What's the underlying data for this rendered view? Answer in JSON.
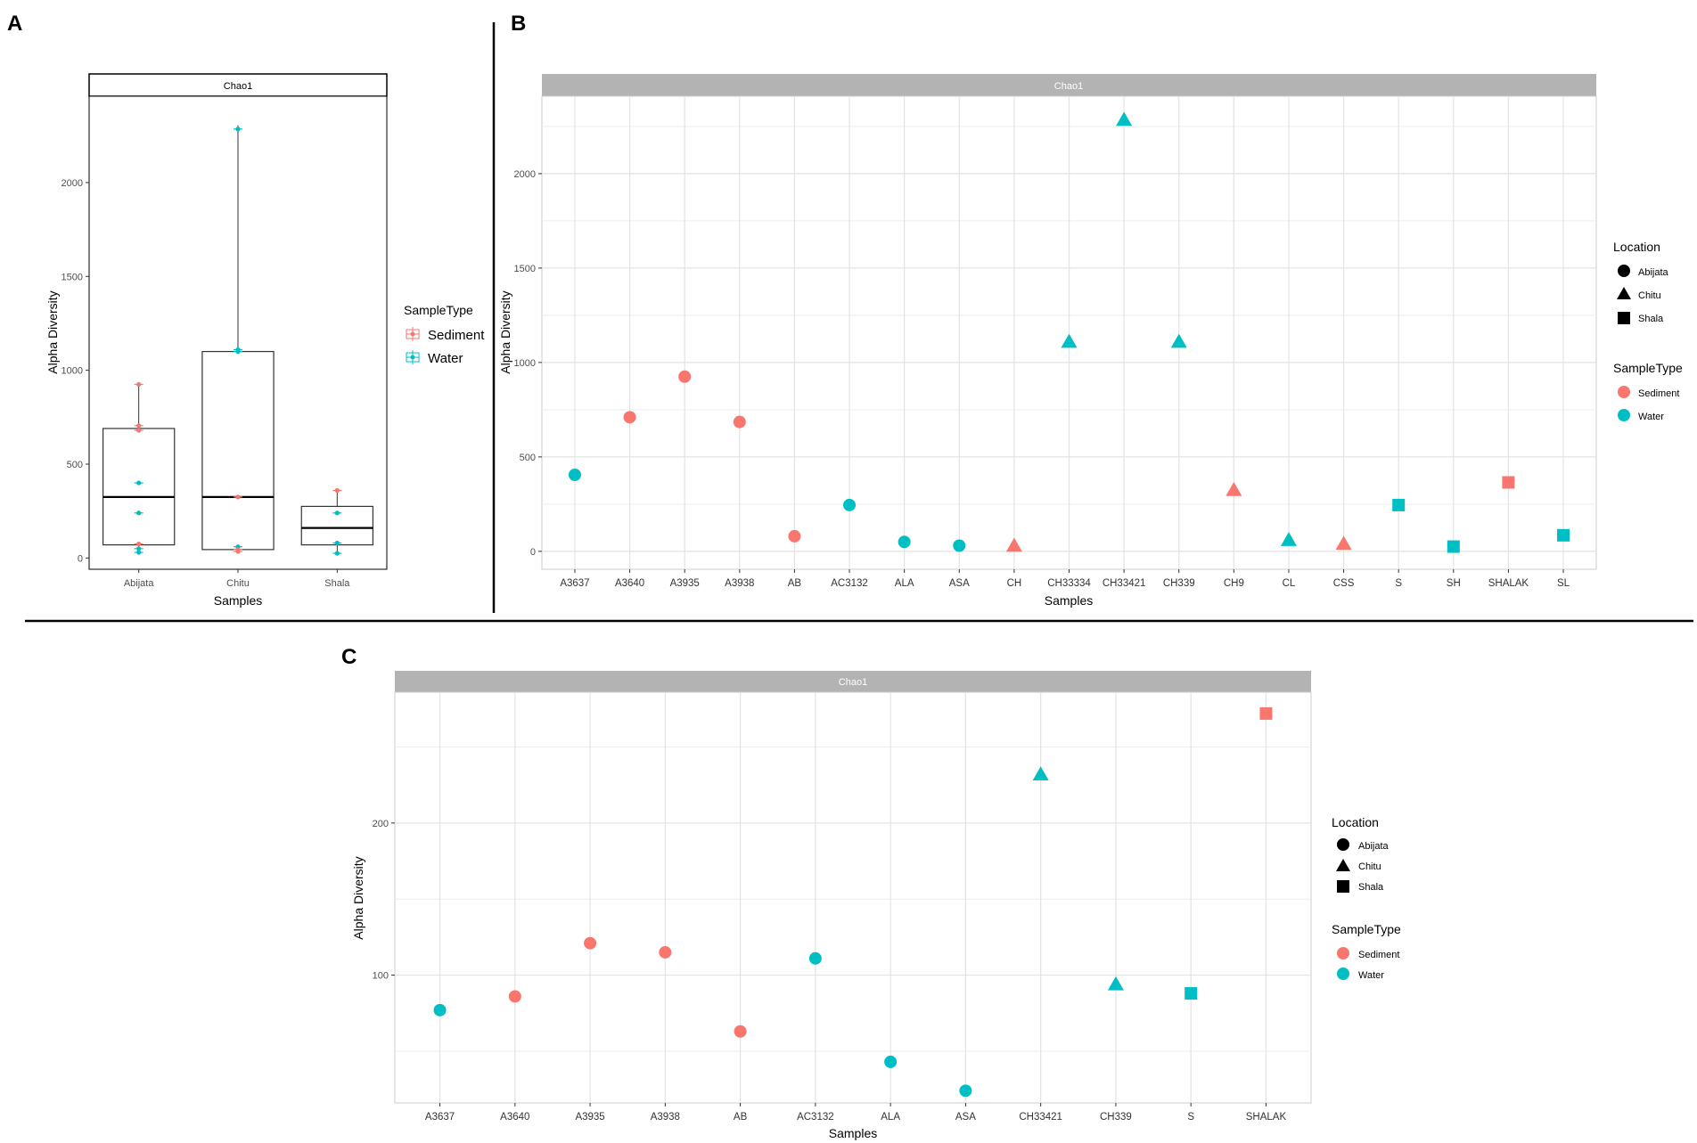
{
  "colors": {
    "sediment": "#F8766D",
    "water": "#00BFC4",
    "grid": "#e5e5e5",
    "strip": "#b3b3b3"
  },
  "panels": [
    {
      "letter": "A"
    },
    {
      "letter": "B"
    },
    {
      "letter": "C"
    }
  ],
  "chart_data": [
    {
      "id": "A",
      "type": "box",
      "title": "Chao1",
      "xlabel": "Samples",
      "ylabel": "Alpha Diversity",
      "ylim": [
        -60,
        2460
      ],
      "yticks": [
        0,
        500,
        1000,
        1500,
        2000
      ],
      "categories": [
        "Abijata",
        "Chitu",
        "Shala"
      ],
      "boxes": [
        {
          "category": "Abijata",
          "q1": 70,
          "median": 325,
          "q3": 690,
          "whisker_low": 30,
          "whisker_high": 925
        },
        {
          "category": "Chitu",
          "q1": 45,
          "median": 325,
          "q3": 1100,
          "whisker_low": 30,
          "whisker_high": 2305
        },
        {
          "category": "Shala",
          "q1": 70,
          "median": 160,
          "q3": 275,
          "whisker_low": 20,
          "whisker_high": 360
        }
      ],
      "points": [
        {
          "category": "Abijata",
          "sample_type": "Sediment",
          "y": 925
        },
        {
          "category": "Abijata",
          "sample_type": "Sediment",
          "y": 705
        },
        {
          "category": "Abijata",
          "sample_type": "Sediment",
          "y": 680
        },
        {
          "category": "Abijata",
          "sample_type": "Sediment",
          "y": 75
        },
        {
          "category": "Abijata",
          "sample_type": "Water",
          "y": 400
        },
        {
          "category": "Abijata",
          "sample_type": "Water",
          "y": 240
        },
        {
          "category": "Abijata",
          "sample_type": "Water",
          "y": 50
        },
        {
          "category": "Abijata",
          "sample_type": "Water",
          "y": 30
        },
        {
          "category": "Chitu",
          "sample_type": "Water",
          "y": 2285
        },
        {
          "category": "Chitu",
          "sample_type": "Water",
          "y": 1110
        },
        {
          "category": "Chitu",
          "sample_type": "Water",
          "y": 1100
        },
        {
          "category": "Chitu",
          "sample_type": "Water",
          "y": 60
        },
        {
          "category": "Chitu",
          "sample_type": "Sediment",
          "y": 325
        },
        {
          "category": "Chitu",
          "sample_type": "Sediment",
          "y": 35
        },
        {
          "category": "Chitu",
          "sample_type": "Sediment",
          "y": 45
        },
        {
          "category": "Shala",
          "sample_type": "Sediment",
          "y": 360
        },
        {
          "category": "Shala",
          "sample_type": "Water",
          "y": 240
        },
        {
          "category": "Shala",
          "sample_type": "Water",
          "y": 80
        },
        {
          "category": "Shala",
          "sample_type": "Water",
          "y": 25
        }
      ],
      "legend": {
        "title": "SampleType",
        "entries": [
          "Sediment",
          "Water"
        ]
      }
    },
    {
      "id": "B",
      "type": "scatter",
      "title": "Chao1",
      "xlabel": "Samples",
      "ylabel": "Alpha Diversity",
      "ylim": [
        -95,
        2410
      ],
      "yticks": [
        0,
        500,
        1000,
        1500,
        2000
      ],
      "categories": [
        "A3637",
        "A3640",
        "A3935",
        "A3938",
        "AB",
        "AC3132",
        "ALA",
        "ASA",
        "CH",
        "CH33334",
        "CH33421",
        "CH339",
        "CH9",
        "CL",
        "CSS",
        "S",
        "SH",
        "SHALAK",
        "SL"
      ],
      "points": [
        {
          "sample": "A3637",
          "y": 405,
          "location": "Abijata",
          "sample_type": "Water"
        },
        {
          "sample": "A3640",
          "y": 710,
          "location": "Abijata",
          "sample_type": "Sediment"
        },
        {
          "sample": "A3935",
          "y": 925,
          "location": "Abijata",
          "sample_type": "Sediment"
        },
        {
          "sample": "A3938",
          "y": 685,
          "location": "Abijata",
          "sample_type": "Sediment"
        },
        {
          "sample": "AB",
          "y": 80,
          "location": "Abijata",
          "sample_type": "Sediment"
        },
        {
          "sample": "AC3132",
          "y": 245,
          "location": "Abijata",
          "sample_type": "Water"
        },
        {
          "sample": "ALA",
          "y": 50,
          "location": "Abijata",
          "sample_type": "Water"
        },
        {
          "sample": "ASA",
          "y": 30,
          "location": "Abijata",
          "sample_type": "Water"
        },
        {
          "sample": "CH",
          "y": 30,
          "location": "Chitu",
          "sample_type": "Sediment"
        },
        {
          "sample": "CH33334",
          "y": 1110,
          "location": "Chitu",
          "sample_type": "Water"
        },
        {
          "sample": "CH33421",
          "y": 2285,
          "location": "Chitu",
          "sample_type": "Water"
        },
        {
          "sample": "CH339",
          "y": 1110,
          "location": "Chitu",
          "sample_type": "Water"
        },
        {
          "sample": "CH9",
          "y": 325,
          "location": "Chitu",
          "sample_type": "Sediment"
        },
        {
          "sample": "CL",
          "y": 60,
          "location": "Chitu",
          "sample_type": "Water"
        },
        {
          "sample": "CSS",
          "y": 40,
          "location": "Chitu",
          "sample_type": "Sediment"
        },
        {
          "sample": "S",
          "y": 245,
          "location": "Shala",
          "sample_type": "Water"
        },
        {
          "sample": "SH",
          "y": 25,
          "location": "Shala",
          "sample_type": "Water"
        },
        {
          "sample": "SHALAK",
          "y": 365,
          "location": "Shala",
          "sample_type": "Sediment"
        },
        {
          "sample": "SL",
          "y": 85,
          "location": "Shala",
          "sample_type": "Water"
        }
      ],
      "legend": {
        "location_title": "Location",
        "locations": [
          "Abijata",
          "Chitu",
          "Shala"
        ],
        "type_title": "SampleType",
        "types": [
          "Sediment",
          "Water"
        ]
      }
    },
    {
      "id": "C",
      "type": "scatter",
      "title": "Chao1",
      "xlabel": "Samples",
      "ylabel": "Alpha Diversity",
      "ylim": [
        16,
        286
      ],
      "yticks": [
        100,
        200
      ],
      "categories": [
        "A3637",
        "A3640",
        "A3935",
        "A3938",
        "AB",
        "AC3132",
        "ALA",
        "ASA",
        "CH33421",
        "CH339",
        "S",
        "SHALAK"
      ],
      "points": [
        {
          "sample": "A3637",
          "y": 77,
          "location": "Abijata",
          "sample_type": "Water"
        },
        {
          "sample": "A3640",
          "y": 86,
          "location": "Abijata",
          "sample_type": "Sediment"
        },
        {
          "sample": "A3935",
          "y": 121,
          "location": "Abijata",
          "sample_type": "Sediment"
        },
        {
          "sample": "A3938",
          "y": 115,
          "location": "Abijata",
          "sample_type": "Sediment"
        },
        {
          "sample": "AB",
          "y": 63,
          "location": "Abijata",
          "sample_type": "Sediment"
        },
        {
          "sample": "AC3132",
          "y": 111,
          "location": "Abijata",
          "sample_type": "Water"
        },
        {
          "sample": "ALA",
          "y": 43,
          "location": "Abijata",
          "sample_type": "Water"
        },
        {
          "sample": "ASA",
          "y": 24,
          "location": "Abijata",
          "sample_type": "Water"
        },
        {
          "sample": "CH33421",
          "y": 232,
          "location": "Chitu",
          "sample_type": "Water"
        },
        {
          "sample": "CH339",
          "y": 94,
          "location": "Chitu",
          "sample_type": "Water"
        },
        {
          "sample": "S",
          "y": 88,
          "location": "Shala",
          "sample_type": "Water"
        },
        {
          "sample": "SHALAK",
          "y": 272,
          "location": "Shala",
          "sample_type": "Sediment"
        }
      ],
      "legend": {
        "location_title": "Location",
        "locations": [
          "Abijata",
          "Chitu",
          "Shala"
        ],
        "type_title": "SampleType",
        "types": [
          "Sediment",
          "Water"
        ]
      }
    }
  ]
}
